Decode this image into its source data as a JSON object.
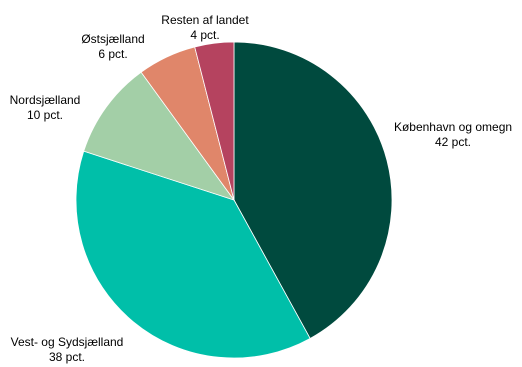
{
  "chart_data": {
    "type": "pie",
    "title": "",
    "start": "12 o'clock",
    "direction": "clockwise",
    "legend": "none",
    "slices": [
      {
        "name": "København og omegn",
        "value": 42,
        "label": "42 pct.",
        "color": "#004a3e"
      },
      {
        "name": "Vest- og Sydsjælland",
        "value": 38,
        "label": "38 pct.",
        "color": "#00bfa9"
      },
      {
        "name": "Nordsjælland",
        "value": 10,
        "label": "10 pct.",
        "color": "#a3cfa7"
      },
      {
        "name": "Østsjælland",
        "value": 6,
        "label": "6 pct.",
        "color": "#e0866a"
      },
      {
        "name": "Resten af landet",
        "value": 4,
        "label": "4 pct.",
        "color": "#b5435f"
      }
    ]
  }
}
